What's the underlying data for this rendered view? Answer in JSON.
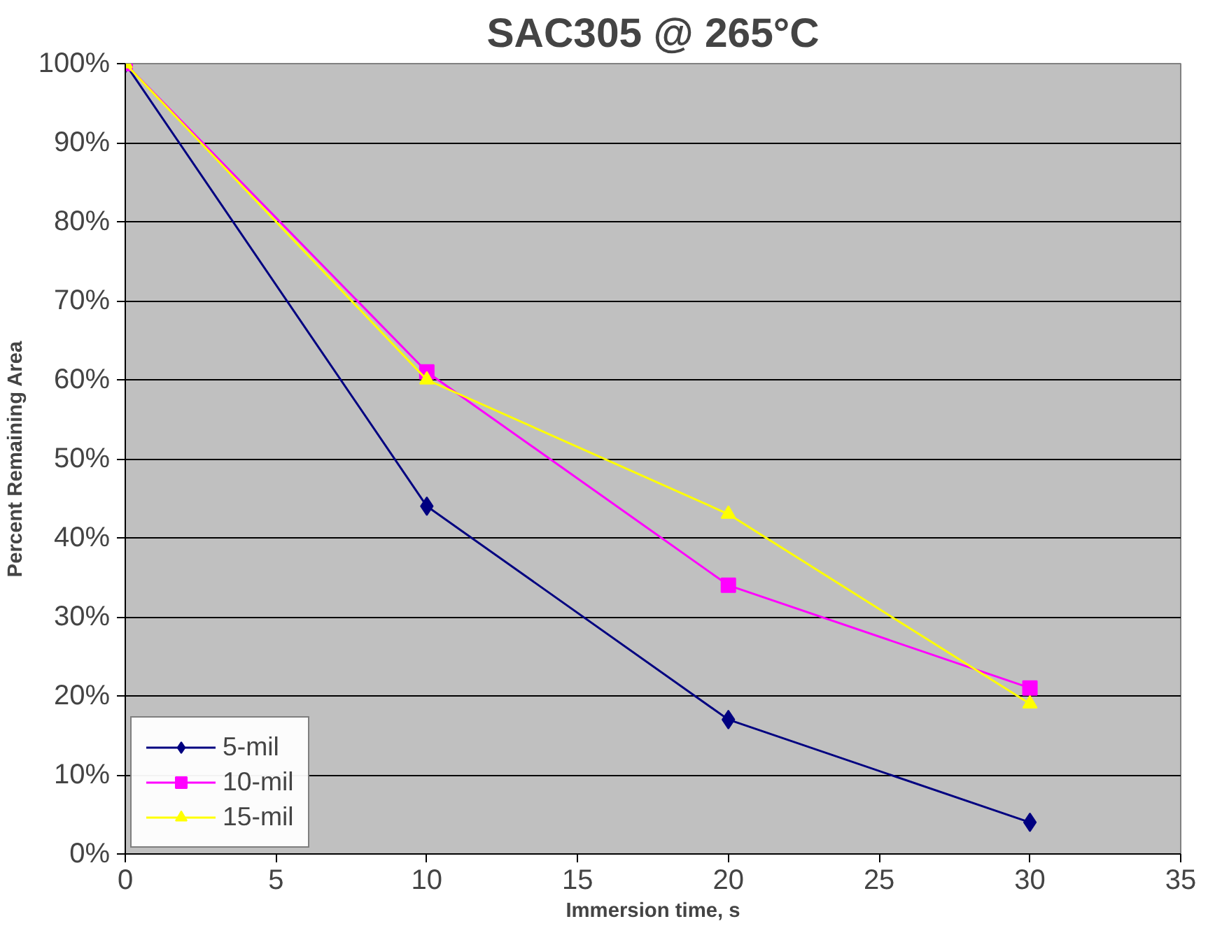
{
  "chart_data": {
    "type": "line",
    "title": "SAC305 @ 265°C",
    "xlabel": "Immersion time, s",
    "ylabel": "Percent Remaining Area",
    "x": [
      0,
      10,
      20,
      30
    ],
    "series": [
      {
        "name": "5-mil",
        "color": "#000080",
        "marker": "diamond",
        "values": [
          100,
          44,
          17,
          4
        ]
      },
      {
        "name": "10-mil",
        "color": "#ff00ff",
        "marker": "square",
        "values": [
          100,
          61,
          34,
          21
        ]
      },
      {
        "name": "15-mil",
        "color": "#ffff00",
        "marker": "triangle",
        "values": [
          100,
          60,
          43,
          19
        ]
      }
    ],
    "xlim": [
      0,
      35
    ],
    "xticks": [
      0,
      5,
      10,
      15,
      20,
      25,
      30,
      35
    ],
    "ylim": [
      0,
      100
    ],
    "yticks": [
      {
        "value": 0,
        "label": "0%"
      },
      {
        "value": 10,
        "label": "10%"
      },
      {
        "value": 20,
        "label": "20%"
      },
      {
        "value": 30,
        "label": "30%"
      },
      {
        "value": 40,
        "label": "40%"
      },
      {
        "value": 50,
        "label": "50%"
      },
      {
        "value": 60,
        "label": "60%"
      },
      {
        "value": 70,
        "label": "70%"
      },
      {
        "value": 80,
        "label": "80%"
      },
      {
        "value": 90,
        "label": "90%"
      },
      {
        "value": 100,
        "label": "100%"
      }
    ],
    "grid": "y",
    "legend": "bottom left",
    "line_style": "solid"
  }
}
